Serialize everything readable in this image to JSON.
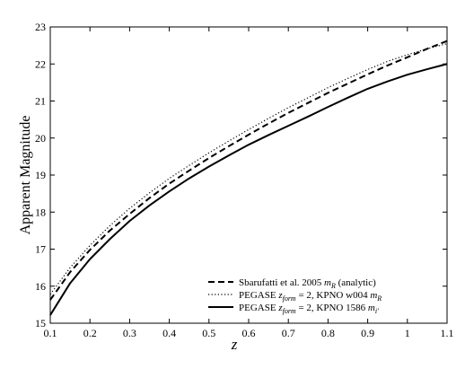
{
  "chart_data": {
    "type": "line",
    "title": "",
    "xlabel": "z",
    "ylabel": "Apparent Magnitude",
    "xlim": [
      0.1,
      1.1
    ],
    "ylim": [
      15,
      23
    ],
    "x_ticks": [
      0.1,
      0.2,
      0.3,
      0.4,
      0.5,
      0.6,
      0.7,
      0.8,
      0.9,
      1,
      1.1
    ],
    "y_ticks": [
      15,
      16,
      17,
      18,
      19,
      20,
      21,
      22,
      23
    ],
    "x_tick_labels": [
      "0.1",
      "0.2",
      "0.3",
      "0.4",
      "0.5",
      "0.6",
      "0.7",
      "0.8",
      "0.9",
      "1",
      "1.1"
    ],
    "y_tick_labels": [
      "15",
      "16",
      "17",
      "18",
      "19",
      "20",
      "21",
      "22",
      "23"
    ],
    "grid": false,
    "legend_position": "bottom-right",
    "x": [
      0.1,
      0.15,
      0.2,
      0.25,
      0.3,
      0.35,
      0.4,
      0.45,
      0.5,
      0.55,
      0.6,
      0.65,
      0.7,
      0.75,
      0.8,
      0.85,
      0.9,
      0.95,
      1.0,
      1.05,
      1.1
    ],
    "series": [
      {
        "name": "Sbarufatti et al. 2005 m_R (analytic)",
        "legend_parts": [
          "Sbarufatti et al. 2005 ",
          "m",
          "R",
          " (analytic)"
        ],
        "style": "dashed",
        "color": "#000000",
        "values": [
          15.63,
          16.38,
          16.98,
          17.5,
          17.95,
          18.38,
          18.77,
          19.12,
          19.46,
          19.78,
          20.09,
          20.39,
          20.68,
          20.95,
          21.22,
          21.47,
          21.72,
          21.96,
          22.18,
          22.41,
          22.62
        ]
      },
      {
        "name": "PEGASE z_form = 2, KPNO w004 m_R",
        "legend_parts": [
          "PEGASE ",
          "z",
          "form",
          " = 2, KPNO w004 ",
          "m",
          "R"
        ],
        "style": "dotted",
        "color": "#000000",
        "values": [
          15.78,
          16.5,
          17.1,
          17.63,
          18.1,
          18.52,
          18.91,
          19.26,
          19.6,
          19.92,
          20.23,
          20.53,
          20.82,
          21.09,
          21.36,
          21.61,
          21.85,
          22.07,
          22.25,
          22.41,
          22.55
        ]
      },
      {
        "name": "PEGASE z_form = 2, KPNO 1586 m_i'",
        "legend_parts": [
          "PEGASE ",
          "z",
          "form",
          " = 2, KPNO 1586 ",
          "m",
          "i′"
        ],
        "style": "solid",
        "color": "#000000",
        "values": [
          15.22,
          16.08,
          16.73,
          17.27,
          17.76,
          18.18,
          18.56,
          18.91,
          19.23,
          19.53,
          19.82,
          20.08,
          20.33,
          20.58,
          20.84,
          21.09,
          21.33,
          21.53,
          21.71,
          21.86,
          22.0
        ]
      }
    ]
  }
}
